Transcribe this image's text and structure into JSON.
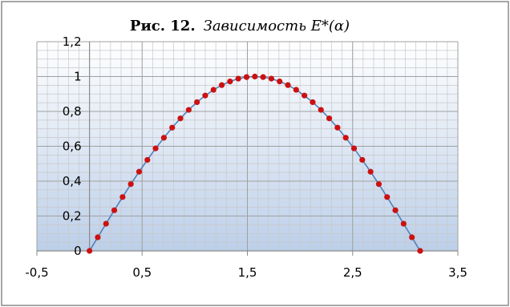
{
  "chart_data": {
    "type": "scatter",
    "title_bold": "Рис. 12.",
    "title_italic": "Зависимость E*(α)",
    "xlabel": "",
    "ylabel": "",
    "xlim": [
      -0.5,
      3.5
    ],
    "ylim": [
      0,
      1.2
    ],
    "x_ticks": [
      -0.5,
      0.5,
      1.5,
      2.5,
      3.5
    ],
    "x_tick_labels": [
      "-0,5",
      "0,5",
      "1,5",
      "2,5",
      "3,5"
    ],
    "y_ticks": [
      0,
      0.2,
      0.4,
      0.6,
      0.8,
      1,
      1.2
    ],
    "y_tick_labels": [
      "0",
      "0,2",
      "0,4",
      "0,6",
      "0,8",
      "1",
      "1,2"
    ],
    "grid": true,
    "legend": "none",
    "series": [
      {
        "marker_color": "#cc1111",
        "line_color": "#4f81bd",
        "x": [
          0.0,
          0.0785,
          0.1571,
          0.2356,
          0.3142,
          0.3927,
          0.4712,
          0.5498,
          0.6283,
          0.7069,
          0.7854,
          0.8639,
          0.9425,
          1.021,
          1.0996,
          1.1781,
          1.2566,
          1.3352,
          1.4137,
          1.4923,
          1.5708,
          1.6493,
          1.7279,
          1.8064,
          1.885,
          1.9635,
          2.042,
          2.1206,
          2.1991,
          2.2777,
          2.3562,
          2.4347,
          2.5133,
          2.5918,
          2.6704,
          2.7489,
          2.8274,
          2.906,
          2.9845,
          3.0631,
          3.1416
        ],
        "y": [
          0.0,
          0.078,
          0.156,
          0.233,
          0.309,
          0.383,
          0.454,
          0.522,
          0.588,
          0.649,
          0.707,
          0.76,
          0.809,
          0.853,
          0.891,
          0.924,
          0.951,
          0.972,
          0.988,
          0.997,
          1.0,
          0.997,
          0.988,
          0.972,
          0.951,
          0.924,
          0.891,
          0.853,
          0.809,
          0.76,
          0.707,
          0.649,
          0.588,
          0.522,
          0.454,
          0.383,
          0.309,
          0.233,
          0.156,
          0.078,
          0.0
        ]
      }
    ],
    "colors": {
      "plot_top": "#ffffff",
      "plot_bottom": "#bccfe9",
      "grid_major": "#a0a0a0",
      "grid_minor": "#c8c8c8",
      "frame": "#8a8a8a"
    }
  }
}
